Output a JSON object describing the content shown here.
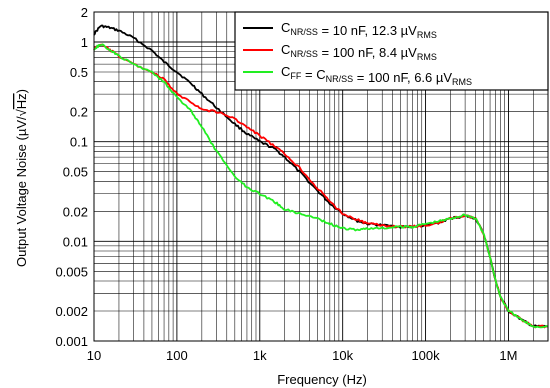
{
  "chart_data": {
    "type": "line",
    "xlabel": "Frequency (Hz)",
    "ylabel": "Output Voltage Noise (µV/√Hz)",
    "ylabel_main": "Output Voltage Noise (µV/",
    "ylabel_sqrt": "√",
    "ylabel_over": "Hz",
    "ylabel_close": ")",
    "x_scale": "log",
    "y_scale": "log",
    "xlim": [
      10,
      3000000
    ],
    "ylim": [
      0.001,
      2
    ],
    "grid": true,
    "legend_position": "top-right",
    "x_ticks": [
      {
        "value": 10,
        "label": "10"
      },
      {
        "value": 100,
        "label": "100"
      },
      {
        "value": 1000,
        "label": "1k"
      },
      {
        "value": 10000,
        "label": "10k"
      },
      {
        "value": 100000,
        "label": "100k"
      },
      {
        "value": 1000000,
        "label": "1M"
      }
    ],
    "y_ticks": [
      {
        "value": 0.001,
        "label": "0.001"
      },
      {
        "value": 0.002,
        "label": "0.002"
      },
      {
        "value": 0.005,
        "label": "0.005"
      },
      {
        "value": 0.01,
        "label": "0.01"
      },
      {
        "value": 0.02,
        "label": "0.02"
      },
      {
        "value": 0.05,
        "label": "0.05"
      },
      {
        "value": 0.1,
        "label": "0.1"
      },
      {
        "value": 0.2,
        "label": "0.2"
      },
      {
        "value": 0.5,
        "label": "0.5"
      },
      {
        "value": 1,
        "label": "1"
      },
      {
        "value": 2,
        "label": "2"
      }
    ],
    "series": [
      {
        "color": "#000000",
        "legend": {
          "pre": "C",
          "sub1": "NR/SS",
          "mid": " = 10 nF, 12.3 µV",
          "sub2": "RMS"
        },
        "points": [
          [
            10,
            1.2
          ],
          [
            12,
            1.45
          ],
          [
            15,
            1.4
          ],
          [
            20,
            1.3
          ],
          [
            30,
            1.1
          ],
          [
            50,
            0.82
          ],
          [
            70,
            0.63
          ],
          [
            100,
            0.5
          ],
          [
            150,
            0.38
          ],
          [
            200,
            0.3
          ],
          [
            300,
            0.22
          ],
          [
            500,
            0.15
          ],
          [
            700,
            0.12
          ],
          [
            1000,
            0.1
          ],
          [
            1500,
            0.085
          ],
          [
            2000,
            0.07
          ],
          [
            3000,
            0.05
          ],
          [
            5000,
            0.032
          ],
          [
            7000,
            0.024
          ],
          [
            10000,
            0.019
          ],
          [
            15000,
            0.016
          ],
          [
            20000,
            0.015
          ],
          [
            30000,
            0.0145
          ],
          [
            50000,
            0.014
          ],
          [
            70000,
            0.014
          ],
          [
            100000,
            0.0145
          ],
          [
            150000,
            0.0155
          ],
          [
            200000,
            0.017
          ],
          [
            300000,
            0.018
          ],
          [
            400000,
            0.017
          ],
          [
            500000,
            0.012
          ],
          [
            600000,
            0.007
          ],
          [
            700000,
            0.004
          ],
          [
            800000,
            0.0028
          ],
          [
            1000000,
            0.002
          ],
          [
            1500000,
            0.0016
          ],
          [
            2000000,
            0.0014
          ],
          [
            3000000,
            0.0014
          ]
        ]
      },
      {
        "color": "#ff0000",
        "legend": {
          "pre": "C",
          "sub1": "NR/SS",
          "mid": " = 100 nF, 8.4 µV",
          "sub2": "RMS"
        },
        "points": [
          [
            10,
            0.85
          ],
          [
            12,
            0.95
          ],
          [
            15,
            0.85
          ],
          [
            20,
            0.72
          ],
          [
            30,
            0.6
          ],
          [
            50,
            0.5
          ],
          [
            70,
            0.42
          ],
          [
            100,
            0.3
          ],
          [
            150,
            0.25
          ],
          [
            200,
            0.21
          ],
          [
            300,
            0.2
          ],
          [
            500,
            0.17
          ],
          [
            700,
            0.14
          ],
          [
            1000,
            0.115
          ],
          [
            1500,
            0.09
          ],
          [
            2000,
            0.075
          ],
          [
            3000,
            0.055
          ],
          [
            5000,
            0.034
          ],
          [
            7000,
            0.025
          ],
          [
            10000,
            0.019
          ],
          [
            15000,
            0.0165
          ],
          [
            20000,
            0.015
          ],
          [
            30000,
            0.0145
          ],
          [
            50000,
            0.014
          ],
          [
            70000,
            0.014
          ],
          [
            100000,
            0.0145
          ],
          [
            150000,
            0.0155
          ],
          [
            200000,
            0.017
          ],
          [
            300000,
            0.018
          ],
          [
            400000,
            0.017
          ],
          [
            500000,
            0.012
          ],
          [
            600000,
            0.007
          ],
          [
            700000,
            0.004
          ],
          [
            800000,
            0.0028
          ],
          [
            1000000,
            0.002
          ],
          [
            1500000,
            0.0016
          ],
          [
            2000000,
            0.0014
          ],
          [
            3000000,
            0.0014
          ]
        ]
      },
      {
        "color": "#22ee22",
        "legend": {
          "pre": "C",
          "sub1": "FF",
          "mid": "  = C",
          "sub2": "NR/SS",
          "mid2": " = 100 nF, 6.6 µV",
          "sub3": "RMS"
        },
        "points": [
          [
            10,
            0.85
          ],
          [
            12,
            0.95
          ],
          [
            15,
            0.85
          ],
          [
            20,
            0.72
          ],
          [
            30,
            0.6
          ],
          [
            50,
            0.5
          ],
          [
            70,
            0.4
          ],
          [
            100,
            0.28
          ],
          [
            150,
            0.2
          ],
          [
            200,
            0.14
          ],
          [
            300,
            0.08
          ],
          [
            500,
            0.045
          ],
          [
            700,
            0.035
          ],
          [
            1000,
            0.03
          ],
          [
            1500,
            0.025
          ],
          [
            2000,
            0.021
          ],
          [
            3000,
            0.019
          ],
          [
            5000,
            0.017
          ],
          [
            7000,
            0.015
          ],
          [
            10000,
            0.0135
          ],
          [
            15000,
            0.013
          ],
          [
            20000,
            0.0135
          ],
          [
            30000,
            0.0135
          ],
          [
            50000,
            0.014
          ],
          [
            70000,
            0.014
          ],
          [
            100000,
            0.015
          ],
          [
            150000,
            0.016
          ],
          [
            200000,
            0.017
          ],
          [
            300000,
            0.0185
          ],
          [
            400000,
            0.017
          ],
          [
            500000,
            0.012
          ],
          [
            600000,
            0.007
          ],
          [
            700000,
            0.004
          ],
          [
            800000,
            0.0028
          ],
          [
            1000000,
            0.002
          ],
          [
            1500000,
            0.0016
          ],
          [
            2000000,
            0.0014
          ],
          [
            3000000,
            0.0014
          ]
        ]
      }
    ]
  }
}
